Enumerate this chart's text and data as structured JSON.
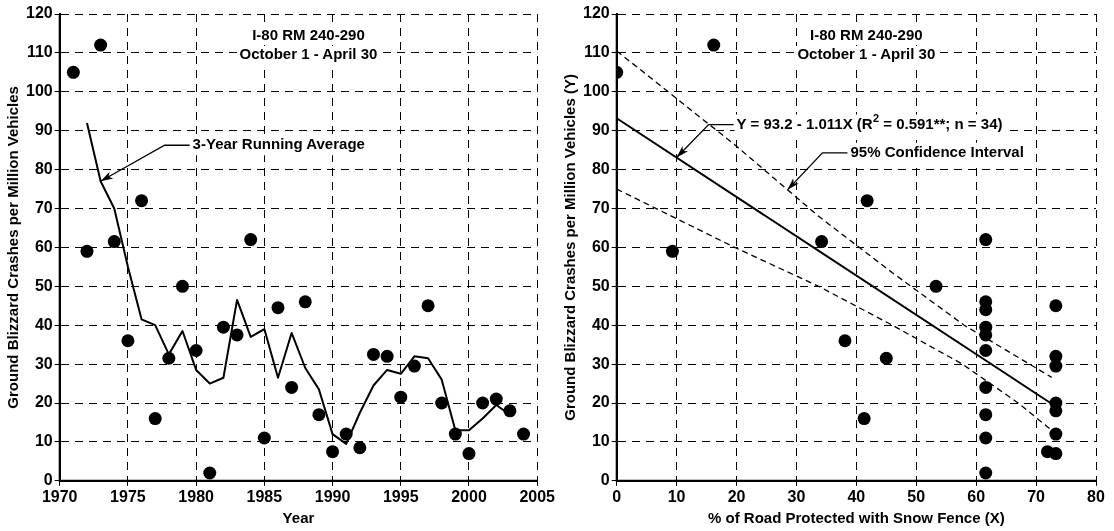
{
  "chart_data": [
    {
      "type": "scatter",
      "title": "I-80 RM 240-290",
      "subtitle": "October 1 - April 30",
      "xlabel": "Year",
      "ylabel": "Ground Blizzard Crashes per Million Vehicles",
      "xlim": [
        1970,
        2005
      ],
      "xticks": [
        1970,
        1975,
        1980,
        1985,
        1990,
        1995,
        2000,
        2005
      ],
      "ylim": [
        0,
        120
      ],
      "yticks": [
        0,
        10,
        20,
        30,
        40,
        50,
        60,
        70,
        80,
        90,
        100,
        110,
        120
      ],
      "grid": true,
      "legend": false,
      "marker": "circle",
      "annotations": [
        {
          "text": "3-Year Running Average",
          "x": 1973,
          "y": 77
        }
      ],
      "series": [
        {
          "type": "scatter",
          "color": "#000000",
          "x": [
            1971,
            1972,
            1973,
            1974,
            1975,
            1976,
            1977,
            1978,
            1979,
            1980,
            1981,
            1982,
            1983,
            1984,
            1985,
            1986,
            1987,
            1988,
            1989,
            1990,
            1991,
            1992,
            1993,
            1994,
            1995,
            1996,
            1997,
            1998,
            1999,
            2000,
            2001,
            2002,
            2003,
            2004
          ],
          "values": [
            105,
            59,
            112,
            61.5,
            36,
            72,
            16,
            31.5,
            50,
            33.5,
            2,
            39.5,
            37.5,
            62,
            11,
            44.5,
            24,
            46,
            17,
            7.5,
            12,
            8.5,
            32.5,
            32,
            21.5,
            29.5,
            45,
            20,
            12,
            7,
            20,
            21,
            18,
            12
          ]
        },
        {
          "type": "line",
          "color": "#000000",
          "marker": "none",
          "line_style": "solid",
          "x": [
            1972,
            1973,
            1974,
            1975,
            1976,
            1977,
            1978,
            1979,
            1980,
            1981,
            1982,
            1983,
            1984,
            1985,
            1986,
            1987,
            1988,
            1989,
            1990,
            1991,
            1992,
            1993,
            1994,
            1995,
            1996,
            1997,
            1998,
            1999,
            2000,
            2001,
            2002,
            2003
          ],
          "values": [
            92,
            77,
            70,
            55,
            41.5,
            40,
            32.5,
            38.5,
            28.5,
            25,
            26.5,
            46.5,
            37,
            39,
            26.5,
            38,
            29,
            23.5,
            12,
            9.5,
            17.5,
            24.5,
            28.5,
            27.5,
            32,
            31.5,
            26,
            13,
            13,
            16,
            19.5,
            17
          ]
        }
      ]
    },
    {
      "type": "scatter",
      "title": "I-80 RM 240-290",
      "subtitle": "October 1 - April 30",
      "xlabel": "% of Road Protected with Snow Fence (X)",
      "ylabel": "Ground Blizzard Crashes per Million Vehicles (Y)",
      "xlim": [
        0,
        80
      ],
      "xticks": [
        0,
        10,
        20,
        30,
        40,
        50,
        60,
        70,
        80
      ],
      "ylim": [
        0,
        120
      ],
      "yticks": [
        0,
        10,
        20,
        30,
        40,
        50,
        60,
        70,
        80,
        90,
        100,
        110,
        120
      ],
      "grid": true,
      "legend": false,
      "marker": "circle",
      "annotations": [
        {
          "text": "Y = 93.2 - 1.011X (R$^{2}$ = 0.591**; n = 34)",
          "x": 10,
          "y": 83.1
        },
        {
          "text": "95% Confidence Interval",
          "x": 28.5,
          "y": 74.8
        }
      ],
      "series": [
        {
          "type": "scatter",
          "color": "#000000",
          "x": [
            0,
            9.3,
            16.2,
            34.2,
            38.1,
            41.3,
            41.8,
            45,
            53.3,
            61.6,
            61.6,
            61.6,
            61.6,
            61.6,
            61.6,
            61.6,
            61.6,
            61.6,
            61.6,
            73.3,
            73.3,
            73.3,
            73.3,
            73.3,
            73.3,
            73.3,
            71.9
          ],
          "values": [
            105,
            59,
            112,
            61.5,
            36,
            16,
            72,
            31.5,
            50,
            62,
            46,
            44,
            39.5,
            37.5,
            33.5,
            24,
            17,
            11,
            2,
            45,
            32,
            29.5,
            20,
            18,
            12,
            7,
            7.5
          ]
        },
        {
          "type": "line",
          "color": "#000000",
          "marker": "none",
          "line_style": "solid",
          "x": [
            0,
            73.3
          ],
          "values": [
            93.2,
            19.1
          ]
        },
        {
          "type": "line",
          "color": "#000000",
          "marker": "none",
          "line_style": "dashed",
          "x": [
            0,
            8.6,
            20,
            33.7,
            46,
            58,
            72.6
          ],
          "values": [
            110.5,
            100,
            86,
            68,
            53.5,
            40,
            26.6
          ]
        },
        {
          "type": "line",
          "color": "#000000",
          "marker": "none",
          "line_style": "dashed",
          "x": [
            0,
            19.7,
            33.7,
            46,
            57.7,
            67,
            72.6
          ],
          "values": [
            75,
            60,
            50,
            40,
            30,
            20,
            13
          ]
        }
      ]
    }
  ]
}
